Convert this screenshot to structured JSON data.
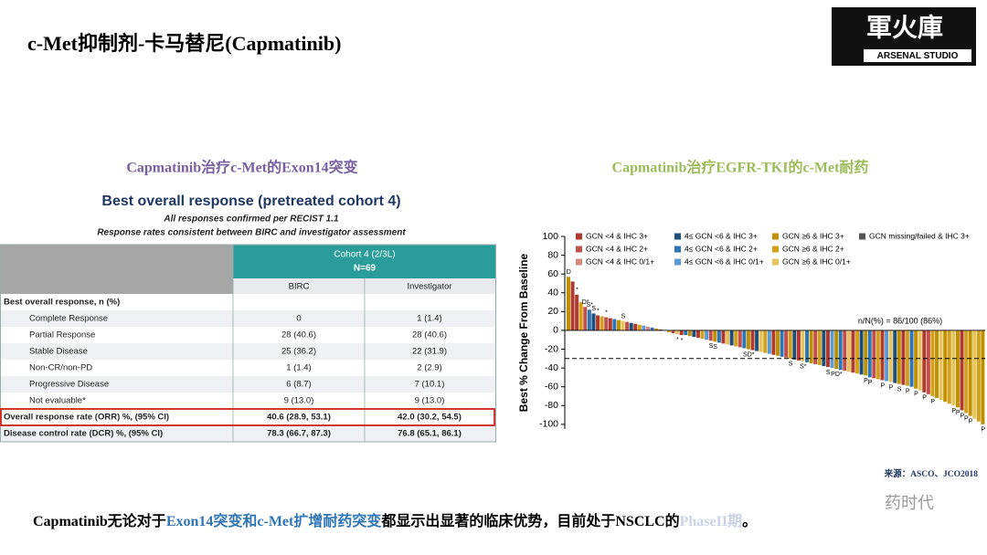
{
  "header": {
    "title": "c-Met抑制剂-卡马替尼(Capmatinib)",
    "logo": "軍火庫",
    "logo_sub": "ARSENAL STUDIO"
  },
  "left": {
    "subtitle": "Capmatinib治疗c-Met的Exon14突变",
    "table_title": "Best overall response (pretreated cohort 4)",
    "note1": "All responses confirmed per RECIST 1.1",
    "note2": "Response rates consistent between BIRC and investigator assessment",
    "table": {
      "cohort": "Cohort 4 (2/3L)",
      "n": "N=69",
      "columns": [
        "BIRC",
        "Investigator"
      ],
      "section": "Best overall response, n (%)",
      "rows": [
        [
          "Complete Response",
          "0",
          "1 (1.4)"
        ],
        [
          "Partial Response",
          "28 (40.6)",
          "28 (40.6)"
        ],
        [
          "Stable Disease",
          "25 (36.2)",
          "22 (31.9)"
        ],
        [
          "Non-CR/non-PD",
          "1 (1.4)",
          "2 (2.9)"
        ],
        [
          "Progressive Disease",
          "6 (8.7)",
          "7 (10.1)"
        ],
        [
          "Not evaluable*",
          "9 (13.0)",
          "9 (13.0)"
        ]
      ],
      "summary_rows": [
        [
          "Overall response rate (ORR) %, (95% CI)",
          "40.6 (28.9, 53.1)",
          "42.0 (30.2, 54.5)"
        ],
        [
          "Disease control rate (DCR) %, (95% CI)",
          "78.3 (66.7, 87.3)",
          "76.8 (65.1, 86.1)"
        ]
      ]
    }
  },
  "right": {
    "subtitle": "Capmatinib治疗EGFR-TKI的c-Met耐药"
  },
  "chart_data": {
    "type": "bar",
    "y_label": "Best % Change From Baseline",
    "annotation": "n/N(%) = 86/100 (86%)",
    "reference_line": -30,
    "ylim": [
      -105,
      100
    ],
    "yticks": [
      100,
      80,
      60,
      40,
      20,
      0,
      -20,
      -40,
      -60,
      -80,
      -100
    ],
    "legend": [
      {
        "name": "GCN <4 & IHC 3+",
        "color": "#b03a2e"
      },
      {
        "name": "4≤ GCN <6 & IHC 3+",
        "color": "#1f4e79"
      },
      {
        "name": "GCN ≥6 & IHC 3+",
        "color": "#bf9000"
      },
      {
        "name": "GCN missing/failed & IHC 3+",
        "color": "#555555"
      },
      {
        "name": "GCN <4 & IHC 2+",
        "color": "#c0504d"
      },
      {
        "name": "4≤ GCN <6 & IHC 2+",
        "color": "#2e75b6"
      },
      {
        "name": "GCN ≥6 & IHC 2+",
        "color": "#d4a017"
      },
      {
        "name": "GCN <4 & IHC 0/1+",
        "color": "#d98880"
      },
      {
        "name": "4≤ GCN <6 & IHC 0/1+",
        "color": "#5b9bd5"
      },
      {
        "name": "GCN ≥6 & IHC 0/1+",
        "color": "#e6c35c"
      }
    ],
    "values": [
      57,
      52,
      38,
      30,
      25,
      22,
      18,
      16,
      15,
      14,
      13,
      12,
      11,
      10,
      9,
      8,
      7,
      6,
      5,
      4,
      3,
      2,
      1,
      0.5,
      -2,
      -3,
      -4,
      -5,
      -5,
      -6,
      -7,
      -8,
      -9,
      -10,
      -11,
      -12,
      -13,
      -14,
      -15,
      -16,
      -17,
      -18,
      -19,
      -20,
      -21,
      -22,
      -23,
      -24,
      -25,
      -26,
      -27,
      -28,
      -29,
      -30,
      -31,
      -32,
      -33,
      -34,
      -35,
      -36,
      -37,
      -38,
      -39,
      -40,
      -41,
      -42,
      -43,
      -44,
      -45,
      -46,
      -47,
      -48,
      -50,
      -51,
      -52,
      -53,
      -54,
      -55,
      -56,
      -57,
      -58,
      -59,
      -60,
      -62,
      -64,
      -66,
      -68,
      -70,
      -72,
      -74,
      -76,
      -78,
      -80,
      -82,
      -85,
      -88,
      -91,
      -94,
      -97,
      -100
    ],
    "bar_colors": [
      "#bf9000",
      "#b03a2e",
      "#b03a2e",
      "#d4a017",
      "#c0504d",
      "#2e75b6",
      "#1f4e79",
      "#b03a2e",
      "#d4a017",
      "#c0504d",
      "#b03a2e",
      "#2e75b6",
      "#bf9000",
      "#e6c35c",
      "#c0504d",
      "#1f4e79",
      "#b03a2e",
      "#d4a017",
      "#5b9bd5",
      "#d98880",
      "#2e75b6",
      "#bf9000",
      "#b03a2e",
      "#1f4e79",
      "#d4a017",
      "#c0504d",
      "#e6c35c",
      "#b03a2e",
      "#2e75b6",
      "#bf9000",
      "#1f4e79",
      "#b03a2e",
      "#d4a017",
      "#5b9bd5",
      "#c0504d",
      "#bf9000",
      "#2e75b6",
      "#b03a2e",
      "#e6c35c",
      "#1f4e79",
      "#d4a017",
      "#c0504d",
      "#2e75b6",
      "#bf9000",
      "#b03a2e",
      "#1f4e79",
      "#e6c35c",
      "#d4a017",
      "#5b9bd5",
      "#b03a2e",
      "#bf9000",
      "#2e75b6",
      "#c0504d",
      "#d4a017",
      "#1f4e79",
      "#b03a2e",
      "#e6c35c",
      "#2e75b6",
      "#bf9000",
      "#c0504d",
      "#d4a017",
      "#1f4e79",
      "#b03a2e",
      "#5b9bd5",
      "#bf9000",
      "#2e75b6",
      "#c0504d",
      "#e6c35c",
      "#b03a2e",
      "#d4a017",
      "#1f4e79",
      "#bf9000",
      "#2e75b6",
      "#c0504d",
      "#d4a017",
      "#b03a2e",
      "#5b9bd5",
      "#e6c35c",
      "#1f4e79",
      "#bf9000",
      "#b03a2e",
      "#d4a017",
      "#2e75b6",
      "#bf9000",
      "#e6c35c",
      "#b03a2e",
      "#c0504d",
      "#d4a017",
      "#bf9000",
      "#e6c35c",
      "#bf9000",
      "#d4a017",
      "#e6c35c",
      "#bf9000",
      "#b03a2e",
      "#d4a017",
      "#bf9000",
      "#e6c35c",
      "#d4a017",
      "#bf9000"
    ],
    "bar_labels": [
      "D",
      null,
      "*",
      null,
      "D*",
      "S*",
      "S",
      "*",
      null,
      "*",
      null,
      null,
      null,
      "S",
      null,
      null,
      null,
      null,
      null,
      null,
      null,
      null,
      null,
      null,
      null,
      null,
      "*",
      "*",
      null,
      null,
      null,
      null,
      null,
      null,
      "S",
      "S",
      null,
      null,
      null,
      null,
      null,
      null,
      null,
      "SD*",
      null,
      null,
      null,
      null,
      null,
      null,
      null,
      null,
      null,
      "S",
      null,
      null,
      "S*",
      null,
      null,
      null,
      null,
      null,
      "S",
      null,
      "PD*",
      null,
      null,
      null,
      null,
      null,
      null,
      "P",
      "P",
      null,
      null,
      "P",
      null,
      "P",
      null,
      "S",
      null,
      "P",
      null,
      "P",
      null,
      "P",
      null,
      "P",
      null,
      null,
      null,
      null,
      "P",
      "P",
      "P",
      "P",
      "P",
      null,
      null,
      "P"
    ]
  },
  "footer": {
    "source": "来源：ASCO、JCO2018",
    "watermark": "药时代",
    "summary": [
      "Capmatinib无论对于",
      "Exon14突变和c-Met扩增耐药突变",
      "都显示出显著的临床优势，目前处于NSCLC的",
      "PhaseII期",
      "。"
    ]
  }
}
